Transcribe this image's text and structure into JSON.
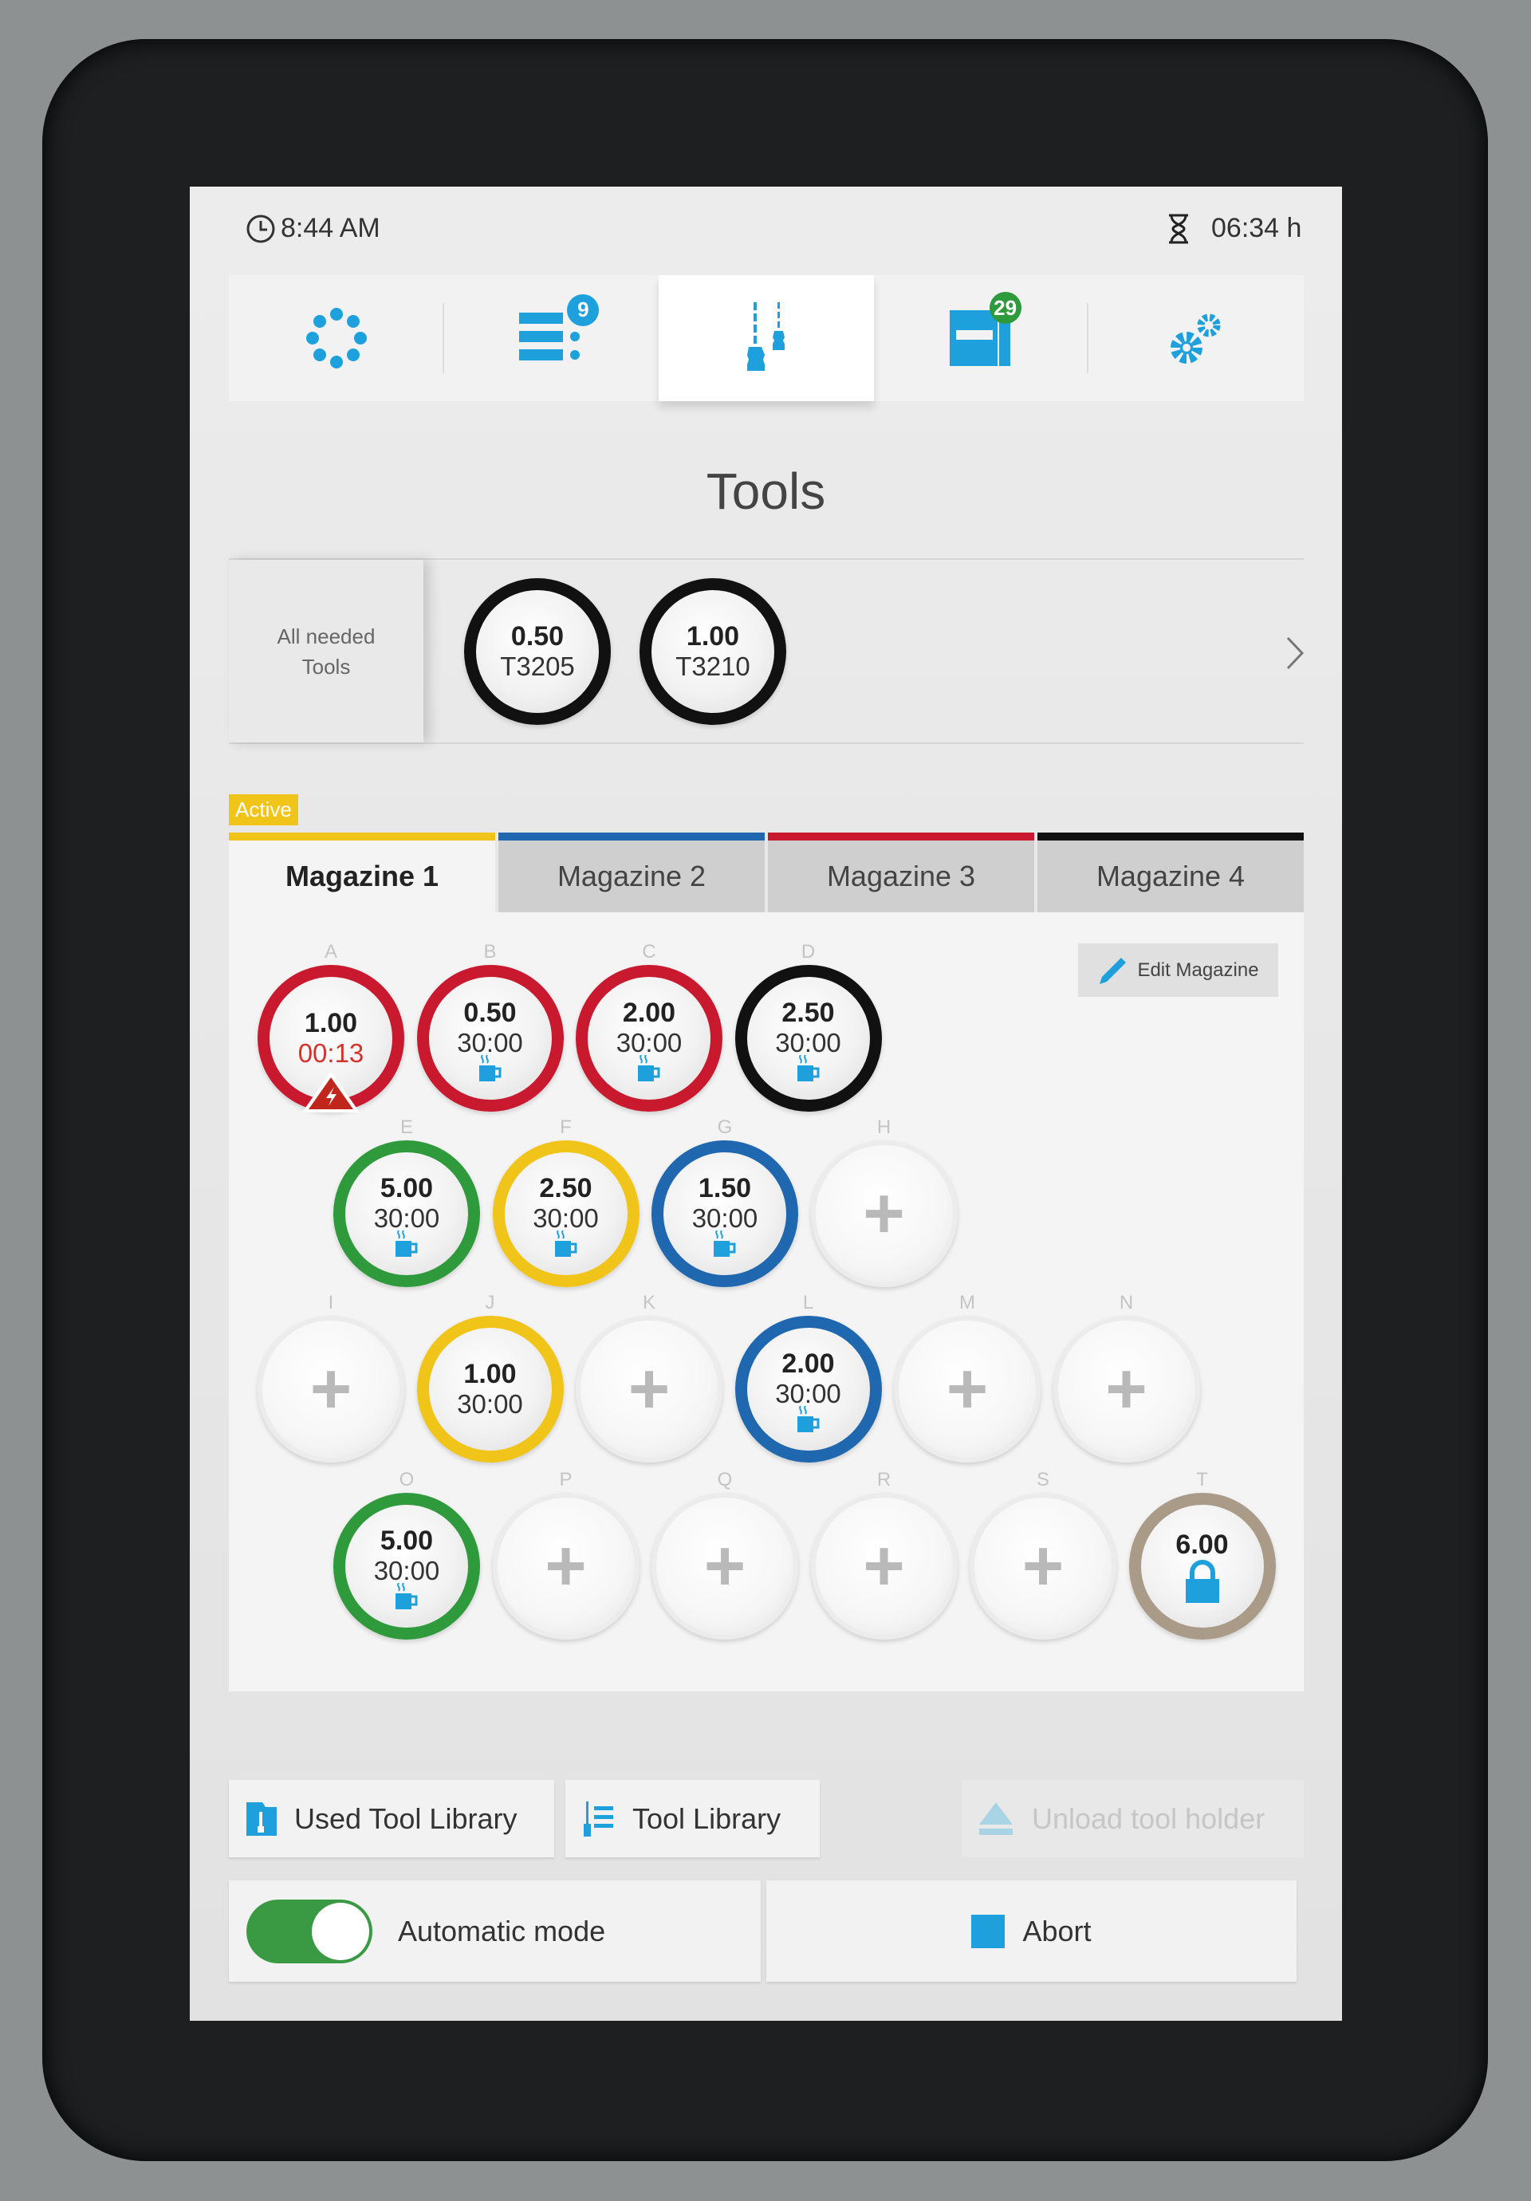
{
  "status": {
    "time": "8:44 AM",
    "time_icon": "clock-icon",
    "remaining": "06:34 h",
    "remaining_icon": "hourglass-icon"
  },
  "nav": {
    "items": [
      {
        "name": "magazine-overview",
        "icon": "circle-dots-icon",
        "badge": null
      },
      {
        "name": "job-list",
        "icon": "list-icon",
        "badge": "9",
        "badge_color": "#1ea0dc"
      },
      {
        "name": "tools",
        "icon": "drill-tools-icon",
        "badge": null,
        "active": true
      },
      {
        "name": "machine",
        "icon": "machine-icon",
        "badge": "29",
        "badge_color": "#2e9a3c"
      },
      {
        "name": "settings",
        "icon": "gears-icon",
        "badge": null
      }
    ]
  },
  "page_title": "Tools",
  "needed_tools": {
    "label": "All needed Tools",
    "tools": [
      {
        "value": "0.50",
        "id": "T3205",
        "color": "#111111"
      },
      {
        "value": "1.00",
        "id": "T3210",
        "color": "#111111"
      }
    ]
  },
  "active_badge": "Active",
  "tabs": [
    {
      "label": "Magazine 1",
      "color": "#f0c419",
      "active": true
    },
    {
      "label": "Magazine 2",
      "color": "#1f68b0"
    },
    {
      "label": "Magazine 3",
      "color": "#c8192e"
    },
    {
      "label": "Magazine 4",
      "color": "#111111"
    }
  ],
  "magazine": {
    "edit_label": "Edit Magazine",
    "slots": [
      {
        "letter": "A",
        "value": "1.00",
        "time": "00:13",
        "color": "#c8192e",
        "status": "warning"
      },
      {
        "letter": "B",
        "value": "0.50",
        "time": "30:00",
        "color": "#c8192e",
        "status": "idle"
      },
      {
        "letter": "C",
        "value": "2.00",
        "time": "30:00",
        "color": "#c8192e",
        "status": "idle"
      },
      {
        "letter": "D",
        "value": "2.50",
        "time": "30:00",
        "color": "#111111",
        "status": "idle"
      },
      {
        "letter": "E",
        "value": "5.00",
        "time": "30:00",
        "color": "#2e9a3c",
        "status": "idle"
      },
      {
        "letter": "F",
        "value": "2.50",
        "time": "30:00",
        "color": "#f0c419",
        "status": "idle"
      },
      {
        "letter": "G",
        "value": "1.50",
        "time": "30:00",
        "color": "#1f68b0",
        "status": "idle"
      },
      {
        "letter": "H",
        "status": "empty"
      },
      {
        "letter": "I",
        "status": "empty"
      },
      {
        "letter": "J",
        "value": "1.00",
        "time": "30:00",
        "color": "#f0c419",
        "status": "none"
      },
      {
        "letter": "K",
        "status": "empty"
      },
      {
        "letter": "L",
        "value": "2.00",
        "time": "30:00",
        "color": "#1f68b0",
        "status": "idle"
      },
      {
        "letter": "M",
        "status": "empty"
      },
      {
        "letter": "N",
        "status": "empty"
      },
      {
        "letter": "O",
        "value": "5.00",
        "time": "30:00",
        "color": "#2e9a3c",
        "status": "idle"
      },
      {
        "letter": "P",
        "status": "empty"
      },
      {
        "letter": "Q",
        "status": "empty"
      },
      {
        "letter": "R",
        "status": "empty"
      },
      {
        "letter": "S",
        "status": "empty"
      },
      {
        "letter": "T",
        "value": "6.00",
        "color": "#a99b87",
        "status": "locked"
      }
    ]
  },
  "actions": {
    "used_tool_library": "Used Tool Library",
    "tool_library": "Tool Library",
    "unload_tool_holder": "Unload tool holder",
    "automatic_mode": "Automatic mode",
    "automatic_mode_on": true,
    "abort": "Abort"
  },
  "colors": {
    "accent": "#1ea0dc",
    "toggle_on": "#3a9a44"
  }
}
